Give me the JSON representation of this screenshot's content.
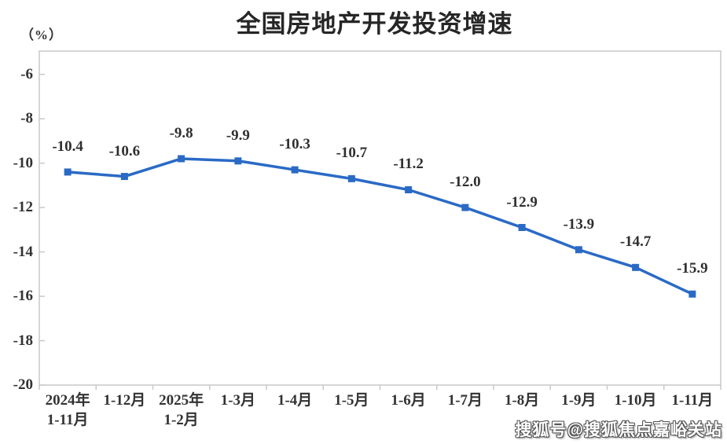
{
  "title": "全国房地产开发投资增速",
  "unit_label": "（%）",
  "watermark": "搜狐号@搜狐焦点嘉峪关站",
  "chart_data": {
    "type": "line",
    "title": "全国房地产开发投资增速",
    "ylabel": "（%）",
    "categories": [
      [
        "2024年",
        "1-11月"
      ],
      [
        "1-12月"
      ],
      [
        "2025年",
        "1-2月"
      ],
      [
        "1-3月"
      ],
      [
        "1-4月"
      ],
      [
        "1-5月"
      ],
      [
        "1-6月"
      ],
      [
        "1-7月"
      ],
      [
        "1-8月"
      ],
      [
        "1-9月"
      ],
      [
        "1-10月"
      ],
      [
        "1-11月"
      ]
    ],
    "values": [
      -10.4,
      -10.6,
      -9.8,
      -9.9,
      -10.3,
      -10.7,
      -11.2,
      -12.0,
      -12.9,
      -13.9,
      -14.7,
      -15.9
    ],
    "yticks": [
      -6,
      -8,
      -10,
      -12,
      -14,
      -16,
      -18,
      -20
    ],
    "ylim": [
      -20,
      -4.95
    ],
    "grid": false,
    "legend": "none",
    "marker": "square",
    "colors": {
      "line": "#2a6ac6",
      "marker": "#2a6ac6",
      "axis": "#c9c9c9",
      "label": "#333333"
    }
  }
}
